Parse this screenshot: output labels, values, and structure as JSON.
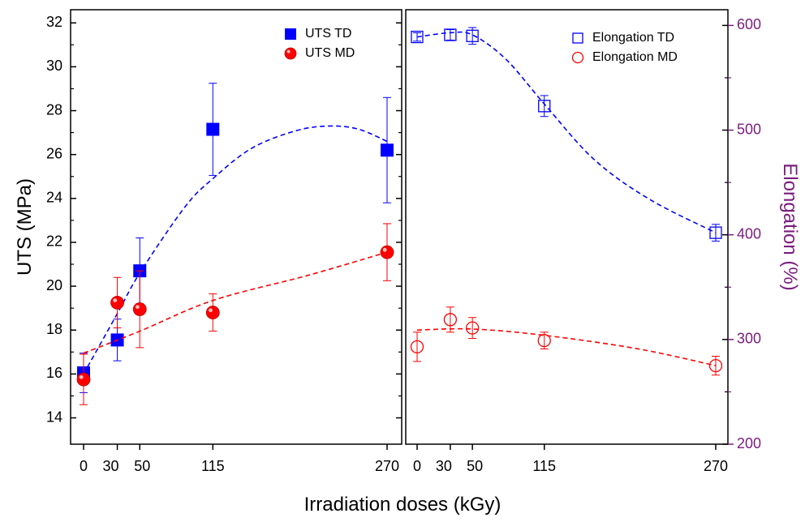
{
  "chart_data": [
    {
      "type": "scatter",
      "panel": "left",
      "xlabel": "Irradiation doses (kGy)",
      "ylabel": "UTS (MPa)",
      "x_ticks": [
        0,
        30,
        50,
        115,
        270
      ],
      "x_tick_labels": [
        "0",
        "30",
        "50",
        "115",
        "270"
      ],
      "ylim": [
        12.8,
        32.6
      ],
      "y_ticks": [
        14,
        16,
        18,
        20,
        22,
        24,
        26,
        28,
        30,
        32
      ],
      "legend_position": "top-right",
      "series": [
        {
          "name": "UTS TD",
          "marker": "filled-square",
          "color": "#0000ff",
          "x": [
            0,
            30,
            50,
            115,
            270
          ],
          "y": [
            16.05,
            17.55,
            20.7,
            27.15,
            26.2
          ],
          "err": [
            0.9,
            0.95,
            1.5,
            2.1,
            2.4
          ],
          "fit_x": [
            0,
            30,
            50,
            90,
            115,
            150,
            190,
            220,
            245,
            270
          ],
          "fit_y": [
            16.0,
            18.75,
            20.6,
            23.6,
            24.9,
            26.3,
            27.1,
            27.3,
            27.15,
            26.6
          ]
        },
        {
          "name": "UTS MD",
          "marker": "filled-circle",
          "color": "#ff0000",
          "x": [
            0,
            30,
            50,
            115,
            270
          ],
          "y": [
            15.75,
            19.25,
            18.95,
            18.8,
            21.55
          ],
          "err": [
            1.15,
            1.15,
            1.75,
            0.85,
            1.3
          ],
          "fit_x": [
            0,
            50,
            115,
            200,
            270
          ],
          "fit_y": [
            16.95,
            17.95,
            19.35,
            20.5,
            21.55
          ]
        }
      ]
    },
    {
      "type": "scatter",
      "panel": "right",
      "xlabel": "Irradiation doses (kGy)",
      "ylabel": "Elongation (%)",
      "x_ticks": [
        0,
        30,
        50,
        115,
        270
      ],
      "x_tick_labels": [
        "0",
        "30",
        "50",
        "115",
        "270"
      ],
      "ylim": [
        200,
        615
      ],
      "y_ticks": [
        200,
        300,
        400,
        500,
        600
      ],
      "legend_position": "top-right",
      "series": [
        {
          "name": "Elongation TD",
          "marker": "open-square",
          "color": "#0000ff",
          "x": [
            0,
            30,
            50,
            115,
            270
          ],
          "y": [
            589,
            591,
            590,
            523,
            402
          ],
          "err": [
            4,
            5,
            8,
            10,
            8
          ],
          "fit_x": [
            0,
            30,
            50,
            80,
            115,
            160,
            210,
            270
          ],
          "fit_y": [
            589,
            593,
            591,
            568,
            525,
            472,
            434,
            402
          ]
        },
        {
          "name": "Elongation MD",
          "marker": "open-circle",
          "color": "#ff0000",
          "x": [
            0,
            30,
            50,
            115,
            270
          ],
          "y": [
            293,
            319,
            311,
            299,
            275
          ],
          "err": [
            14,
            12,
            10,
            8,
            9
          ],
          "fit_x": [
            0,
            50,
            115,
            200,
            270
          ],
          "fit_y": [
            309,
            310,
            304,
            291,
            275
          ]
        }
      ]
    }
  ]
}
